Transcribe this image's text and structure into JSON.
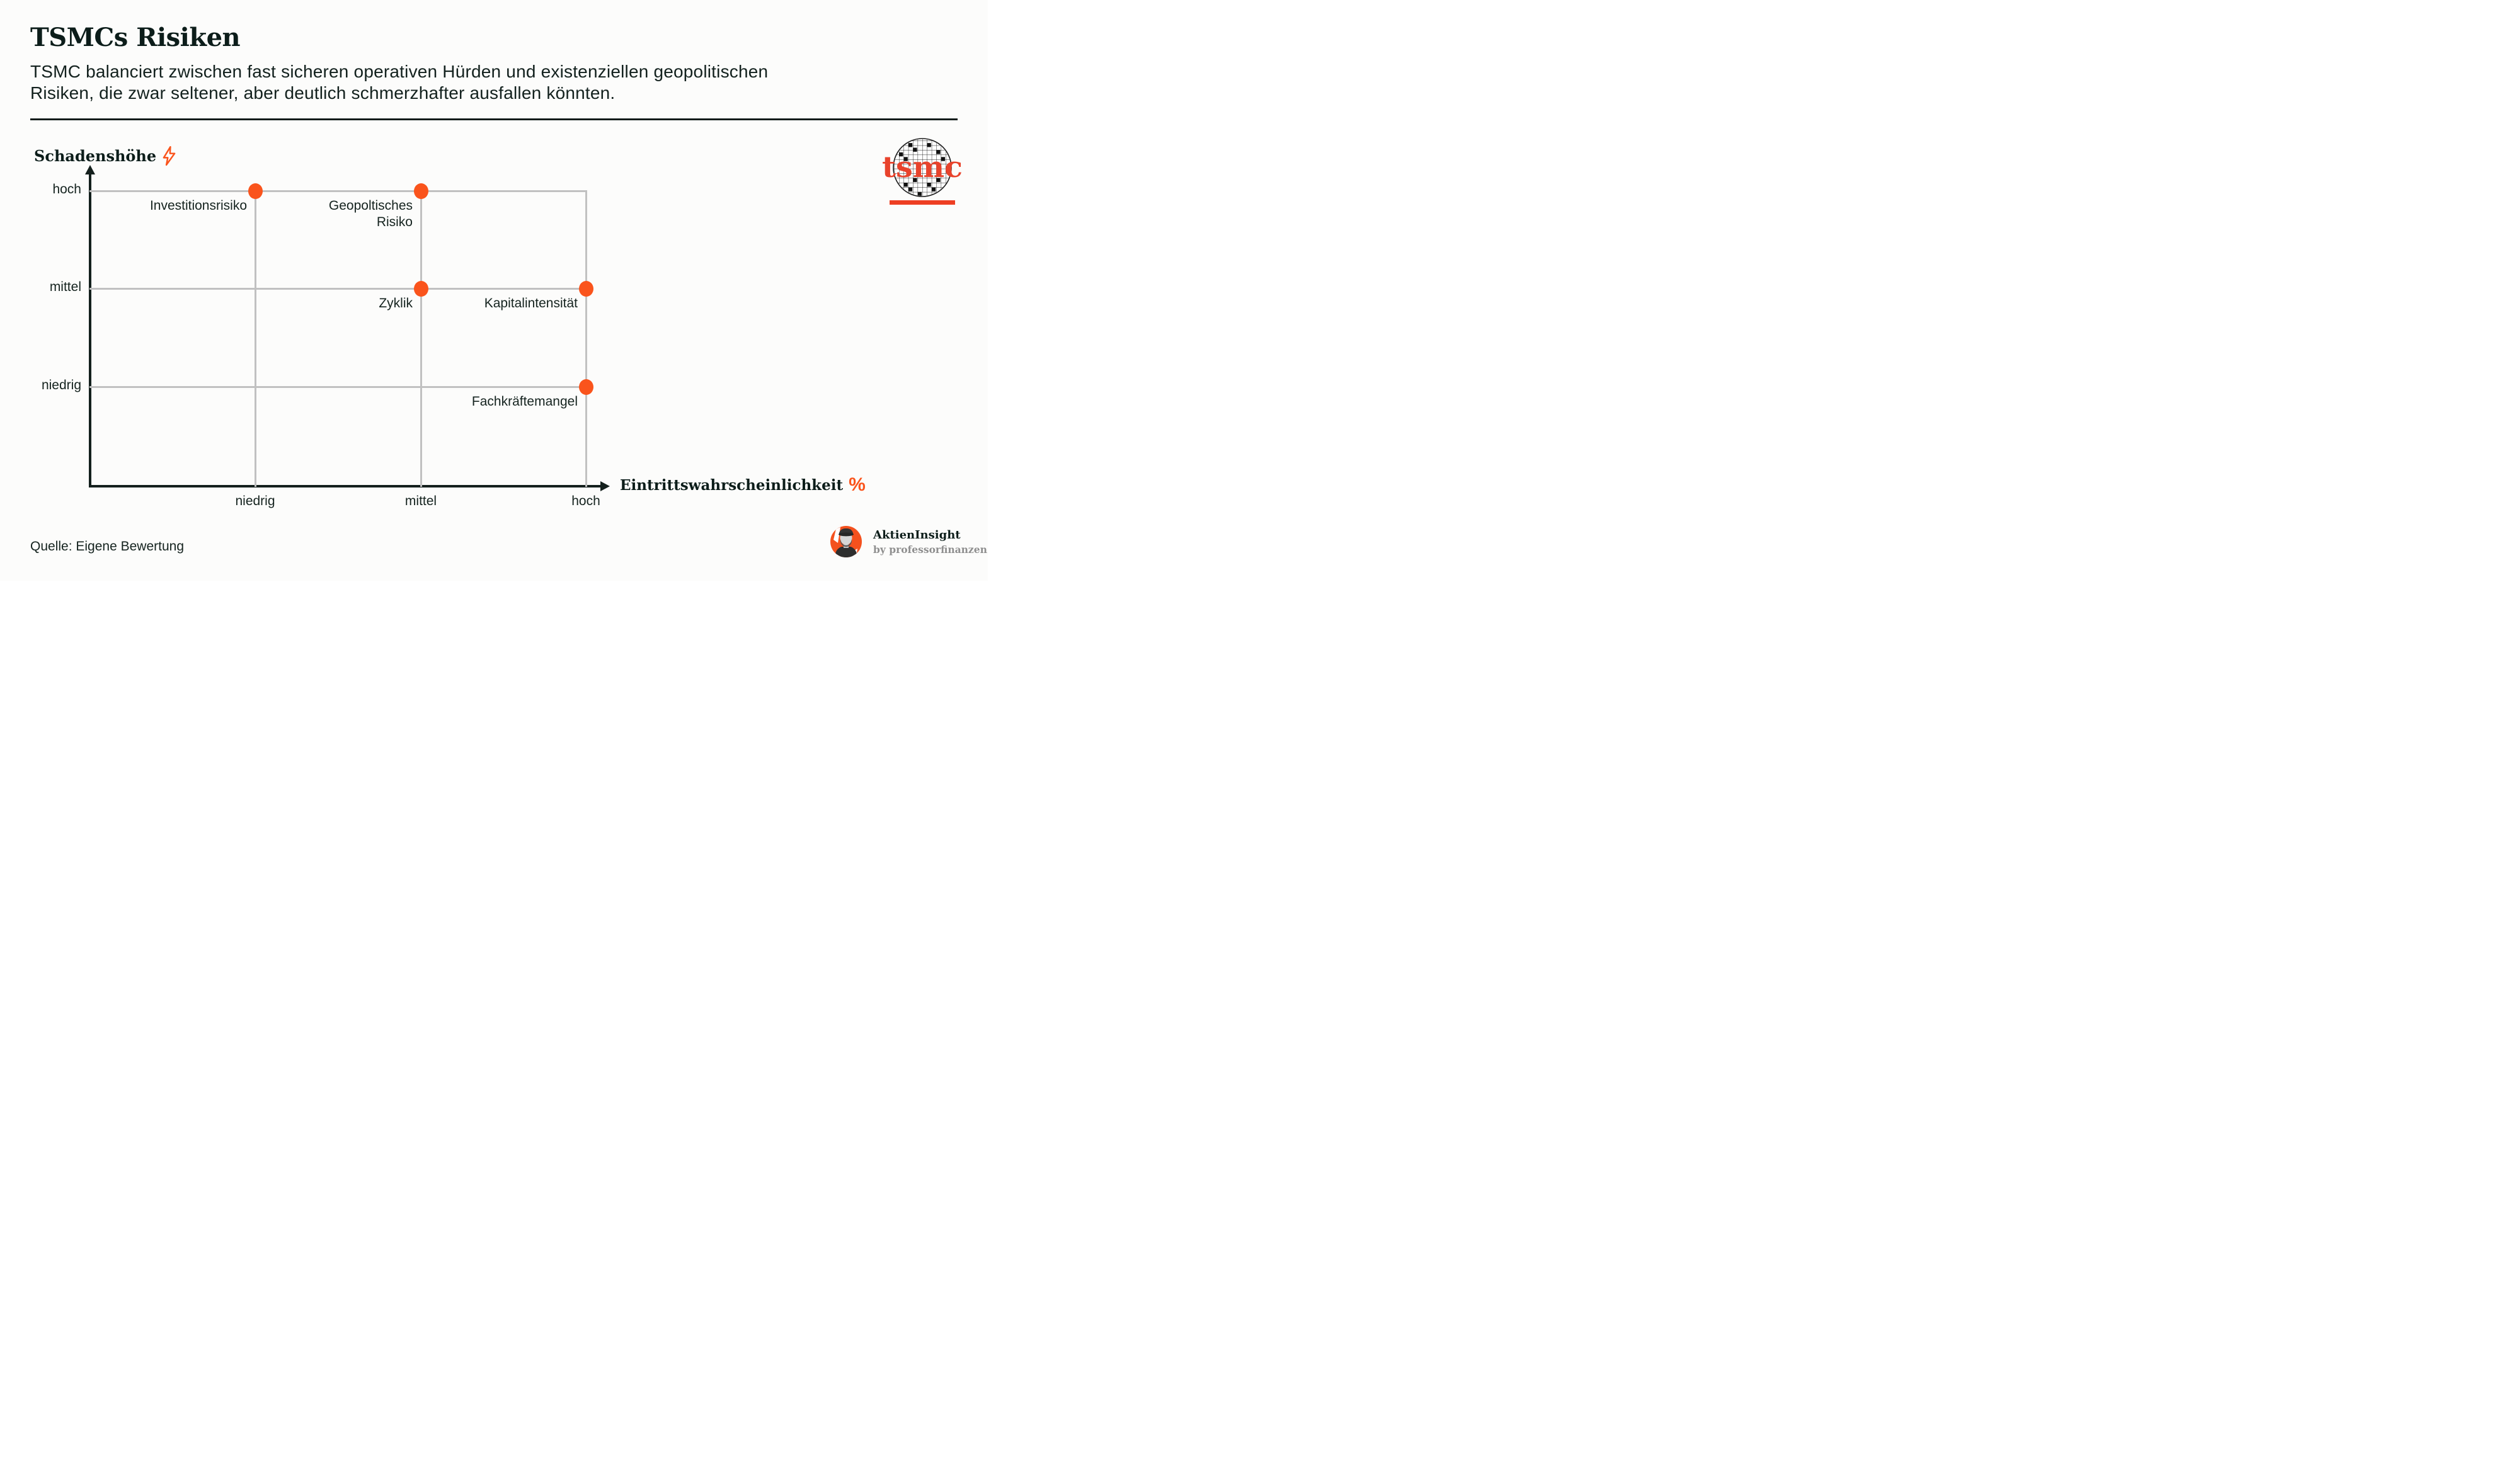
{
  "header": {
    "title": "TSMCs Risiken",
    "subtitle_lines": [
      "TSMC balanciert zwischen fast sicheren operativen Hürden und existenziellen geopolitischen",
      "Risiken, die zwar seltener, aber deutlich schmerzhafter ausfallen könnten."
    ]
  },
  "chart_data": {
    "type": "scatter",
    "title": "TSMCs Risiken",
    "x_axis": {
      "title": "Eintrittswahrscheinlichkeit",
      "unit": "%",
      "categories": [
        "niedrig",
        "mittel",
        "hoch"
      ]
    },
    "y_axis": {
      "title": "Schadenshöhe",
      "unit_icon": "lightning-bolt-icon",
      "categories": [
        "hoch",
        "mittel",
        "niedrig"
      ]
    },
    "grid": true,
    "legend": false,
    "points": [
      {
        "label_lines": [
          "Investitionsrisiko"
        ],
        "x": "niedrig",
        "y": "hoch"
      },
      {
        "label_lines": [
          "Geopoltisches",
          "Risiko"
        ],
        "x": "mittel",
        "y": "hoch"
      },
      {
        "label_lines": [
          "Zyklik"
        ],
        "x": "mittel",
        "y": "mittel"
      },
      {
        "label_lines": [
          "Kapitalintensität"
        ],
        "x": "hoch",
        "y": "mittel"
      },
      {
        "label_lines": [
          "Fachkräftemangel"
        ],
        "x": "hoch",
        "y": "niedrig"
      }
    ]
  },
  "branding": {
    "logo_text": "tsmc"
  },
  "footer": {
    "source": "Quelle: Eigene Bewertung",
    "credit_title": "AktienInsight",
    "credit_subtitle": "by professorfinanzen"
  },
  "colors": {
    "accent_orange": "#fa541c",
    "tsmc_red": "#e8432c",
    "grid_gray": "#c1c1c1",
    "text_dark": "#0f201d",
    "credit_gray": "#8f8f8f"
  }
}
